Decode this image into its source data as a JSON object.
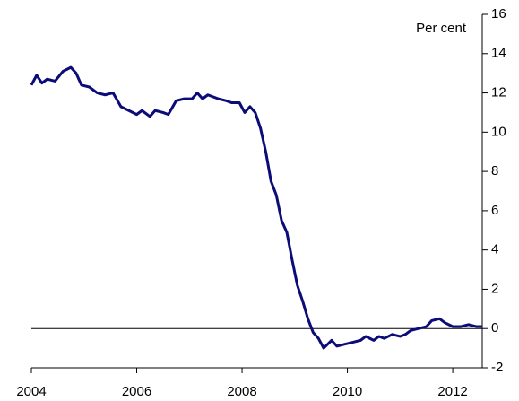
{
  "chart_data": {
    "type": "line",
    "y_axis_label": "Per cent",
    "x": [
      2004.0,
      2004.1,
      2004.2,
      2004.3,
      2004.45,
      2004.6,
      2004.75,
      2004.85,
      2004.95,
      2005.1,
      2005.25,
      2005.4,
      2005.55,
      2005.7,
      2005.85,
      2006.0,
      2006.1,
      2006.25,
      2006.35,
      2006.5,
      2006.6,
      2006.75,
      2006.9,
      2007.05,
      2007.15,
      2007.25,
      2007.35,
      2007.55,
      2007.7,
      2007.8,
      2007.95,
      2008.05,
      2008.15,
      2008.25,
      2008.35,
      2008.45,
      2008.55,
      2008.65,
      2008.75,
      2008.85,
      2008.95,
      2009.05,
      2009.15,
      2009.25,
      2009.35,
      2009.45,
      2009.55,
      2009.7,
      2009.8,
      2009.95,
      2010.1,
      2010.25,
      2010.35,
      2010.5,
      2010.6,
      2010.7,
      2010.85,
      2011.0,
      2011.1,
      2011.2,
      2011.35,
      2011.5,
      2011.6,
      2011.75,
      2011.85,
      2012.0,
      2012.15,
      2012.3,
      2012.45,
      2012.55
    ],
    "series": [
      {
        "color": "#0c0c78",
        "values": [
          12.4,
          12.9,
          12.5,
          12.7,
          12.6,
          13.1,
          13.3,
          13.0,
          12.4,
          12.3,
          12.0,
          11.9,
          12.0,
          11.3,
          11.1,
          10.9,
          11.1,
          10.8,
          11.1,
          11.0,
          10.9,
          11.6,
          11.7,
          11.7,
          12.0,
          11.7,
          11.9,
          11.7,
          11.6,
          11.5,
          11.5,
          11.0,
          11.3,
          11.0,
          10.2,
          9.0,
          7.5,
          6.8,
          5.5,
          4.9,
          3.5,
          2.2,
          1.4,
          0.5,
          -0.2,
          -0.5,
          -1.0,
          -0.6,
          -0.9,
          -0.8,
          -0.7,
          -0.6,
          -0.4,
          -0.6,
          -0.4,
          -0.5,
          -0.3,
          -0.4,
          -0.3,
          -0.1,
          0.0,
          0.1,
          0.4,
          0.5,
          0.3,
          0.1,
          0.1,
          0.2,
          0.1,
          0.1
        ]
      }
    ],
    "xlim": [
      2004,
      2012.56
    ],
    "xticks": [
      2004,
      2006,
      2008,
      2010,
      2012
    ],
    "ylim": [
      -2,
      16
    ],
    "yticks": [
      -2,
      0,
      2,
      4,
      6,
      8,
      10,
      12,
      14,
      16
    ]
  }
}
